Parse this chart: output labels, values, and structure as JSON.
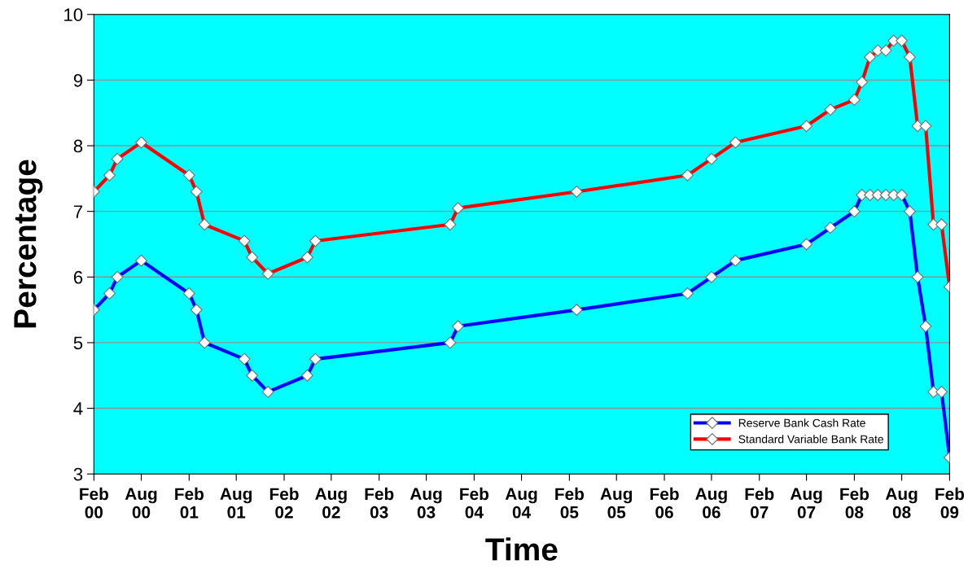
{
  "chart_data": {
    "type": "line",
    "xlabel": "Time",
    "ylabel": "Percentage",
    "x": [
      "2000-02",
      "2000-04",
      "2000-05",
      "2000-08",
      "2001-02",
      "2001-03",
      "2001-04",
      "2001-09",
      "2001-10",
      "2001-12",
      "2002-05",
      "2002-06",
      "2003-11",
      "2003-12",
      "2005-03",
      "2006-05",
      "2006-08",
      "2006-11",
      "2007-08",
      "2007-11",
      "2008-02",
      "2008-03",
      "2008-04",
      "2008-05",
      "2008-06",
      "2008-07",
      "2008-08",
      "2008-09",
      "2008-10",
      "2008-11",
      "2008-12",
      "2009-01",
      "2009-02"
    ],
    "series": [
      {
        "name": "Reserve Bank Cash Rate",
        "color": "#0000ff",
        "values": [
          5.5,
          5.75,
          6.0,
          6.25,
          5.75,
          5.5,
          5.0,
          4.75,
          4.5,
          4.25,
          4.5,
          4.75,
          5.0,
          5.25,
          5.5,
          5.75,
          6.0,
          6.25,
          6.5,
          6.75,
          7.0,
          7.25,
          7.25,
          7.25,
          7.25,
          7.25,
          7.25,
          7.0,
          6.0,
          5.25,
          4.25,
          4.25,
          3.25
        ]
      },
      {
        "name": "Standard Variable Bank Rate",
        "color": "#ff0000",
        "values": [
          7.3,
          7.55,
          7.8,
          8.05,
          7.55,
          7.3,
          6.8,
          6.55,
          6.3,
          6.05,
          6.3,
          6.55,
          6.8,
          7.05,
          7.3,
          7.55,
          7.8,
          8.05,
          8.3,
          8.55,
          8.7,
          8.97,
          9.35,
          9.45,
          9.45,
          9.6,
          9.6,
          9.35,
          8.3,
          8.3,
          6.8,
          6.8,
          5.85
        ]
      }
    ],
    "xlim": [
      "2000-02",
      "2009-02"
    ],
    "xticks": [
      {
        "value": "2000-02",
        "label": "Feb\n00"
      },
      {
        "value": "2000-08",
        "label": "Aug\n00"
      },
      {
        "value": "2001-02",
        "label": "Feb\n01"
      },
      {
        "value": "2001-08",
        "label": "Aug\n01"
      },
      {
        "value": "2002-02",
        "label": "Feb\n02"
      },
      {
        "value": "2002-08",
        "label": "Aug\n02"
      },
      {
        "value": "2003-02",
        "label": "Feb\n03"
      },
      {
        "value": "2003-08",
        "label": "Aug\n03"
      },
      {
        "value": "2004-02",
        "label": "Feb\n04"
      },
      {
        "value": "2004-08",
        "label": "Aug\n04"
      },
      {
        "value": "2005-02",
        "label": "Feb\n05"
      },
      {
        "value": "2005-08",
        "label": "Aug\n05"
      },
      {
        "value": "2006-02",
        "label": "Feb\n06"
      },
      {
        "value": "2006-08",
        "label": "Aug\n06"
      },
      {
        "value": "2007-02",
        "label": "Feb\n07"
      },
      {
        "value": "2007-08",
        "label": "Aug\n07"
      },
      {
        "value": "2008-02",
        "label": "Feb\n08"
      },
      {
        "value": "2008-08",
        "label": "Aug\n08"
      },
      {
        "value": "2009-02",
        "label": "Feb\n09"
      }
    ],
    "ylim": [
      3,
      10
    ],
    "yticks": [
      3,
      4,
      5,
      6,
      7,
      8,
      9,
      10
    ],
    "grid": "y",
    "legend": "bottom right",
    "marker": "diamond",
    "line_style": "solid"
  }
}
